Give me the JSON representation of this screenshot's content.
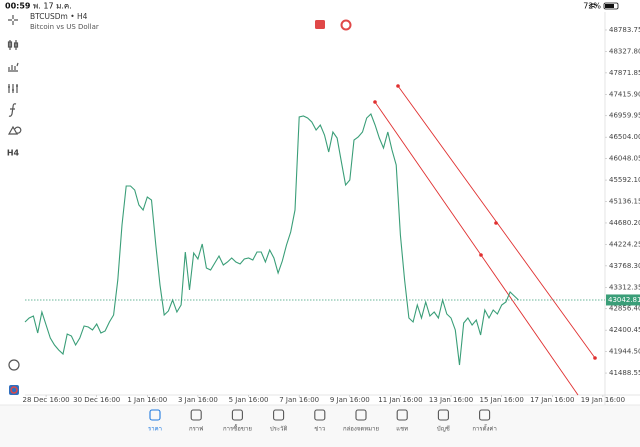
{
  "status_bar": {
    "time": "00:59",
    "date": "พ. 17 ม.ค.",
    "battery": "72%"
  },
  "symbol": {
    "name": "BTCUSDm • H4",
    "description": "Bitcoin vs US Dollar"
  },
  "timeframe_button": "H4",
  "chart_data": {
    "type": "line",
    "color": "#3a9e78",
    "x": [
      -20,
      -16,
      -12,
      -8,
      -4,
      0,
      4,
      8,
      12,
      16,
      20,
      24,
      28,
      32,
      36,
      40,
      44,
      48,
      52,
      56,
      60,
      64,
      68,
      72,
      76,
      80,
      84,
      88,
      92,
      96,
      100,
      104,
      108,
      112,
      116,
      120,
      124,
      128,
      132,
      136,
      140,
      144,
      148,
      152,
      156,
      160,
      164,
      168,
      172,
      176,
      180,
      184,
      188,
      192,
      196,
      200,
      204,
      208,
      212,
      216,
      220,
      224,
      228,
      232,
      236,
      240,
      244,
      248,
      252,
      256,
      260,
      264,
      268,
      272,
      276,
      280,
      284,
      288,
      292,
      296,
      300,
      304,
      308,
      312,
      316,
      320,
      324,
      328,
      332,
      336,
      340,
      344,
      348,
      352,
      356,
      360,
      364,
      368,
      372,
      376,
      380,
      384,
      388,
      392,
      396,
      400,
      404,
      408,
      412,
      416,
      420,
      424,
      428,
      432,
      436,
      440,
      444,
      448
    ],
    "values": [
      42574,
      42659,
      42702,
      42340,
      42787,
      42510,
      42234,
      42085,
      41979,
      41894,
      42319,
      42276,
      42085,
      42234,
      42489,
      42468,
      42404,
      42532,
      42340,
      42383,
      42574,
      42723,
      43467,
      44637,
      45466,
      45466,
      45381,
      45062,
      44956,
      45232,
      45169,
      44212,
      43361,
      42723,
      42808,
      43042,
      42787,
      42936,
      44063,
      43255,
      44041,
      43914,
      44233,
      43722,
      43680,
      43829,
      43978,
      43786,
      43850,
      43935,
      43850,
      43807,
      43914,
      43935,
      43893,
      44063,
      44063,
      43850,
      44105,
      43935,
      43616,
      43871,
      44212,
      44488,
      44956,
      46934,
      46955,
      46912,
      46827,
      46657,
      46763,
      46551,
      46189,
      46615,
      46487,
      45977,
      45487,
      45594,
      46444,
      46508,
      46615,
      46912,
      46997,
      46763,
      46487,
      46274,
      46615,
      46232,
      45913,
      44424,
      43467,
      42659,
      42574,
      42936,
      42659,
      42999,
      42702,
      42787,
      42659,
      43042,
      42744,
      42659,
      42404,
      41660,
      42553,
      42659,
      42510,
      42617,
      42298,
      42829,
      42659,
      42829,
      42744,
      42936,
      42999,
      43212,
      43127,
      43042
    ],
    "xlim": [
      -20,
      530
    ],
    "xticks": [
      {
        "value": 0,
        "label": "28 Dec 16:00"
      },
      {
        "value": 48,
        "label": "30 Dec 16:00"
      },
      {
        "value": 96,
        "label": "1 Jan 16:00"
      },
      {
        "value": 144,
        "label": "3 Jan 16:00"
      },
      {
        "value": 192,
        "label": "5 Jan 16:00"
      },
      {
        "value": 240,
        "label": "7 Jan 16:00"
      },
      {
        "value": 288,
        "label": "9 Jan 16:00"
      },
      {
        "value": 336,
        "label": "11 Jan 16:00"
      },
      {
        "value": 384,
        "label": "13 Jan 16:00"
      },
      {
        "value": 432,
        "label": "15 Jan 16:00"
      },
      {
        "value": 480,
        "label": "17 Jan 16:00"
      },
      {
        "value": 528,
        "label": "19 Jan 16:00"
      }
    ],
    "ylim": [
      41022,
      49166
    ],
    "yticks": [
      {
        "value": 48783.75,
        "label": "48783.75"
      },
      {
        "value": 48327.8,
        "label": "48327.80"
      },
      {
        "value": 47871.85,
        "label": "47871.85"
      },
      {
        "value": 47415.9,
        "label": "47415.90"
      },
      {
        "value": 46959.95,
        "label": "46959.95"
      },
      {
        "value": 46504,
        "label": "46504.00"
      },
      {
        "value": 46048.05,
        "label": "46048.05"
      },
      {
        "value": 45592.1,
        "label": "45592.10"
      },
      {
        "value": 45136.15,
        "label": "45136.15"
      },
      {
        "value": 44680.2,
        "label": "44680.20"
      },
      {
        "value": 44224.25,
        "label": "44224.25"
      },
      {
        "value": 43768.3,
        "label": "43768.30"
      },
      {
        "value": 43312.35,
        "label": "43312.35"
      },
      {
        "value": 42856.4,
        "label": "42856.40"
      },
      {
        "value": 42400.45,
        "label": "42400.45"
      },
      {
        "value": 41944.5,
        "label": "41944.50"
      },
      {
        "value": 41488.55,
        "label": "41488.55"
      }
    ],
    "last_price": {
      "value": 43042.81,
      "label": "43042.81"
    }
  },
  "nav": [
    "ราคา",
    "กราฟ",
    "การซื้อขาย",
    "ประวัติ",
    "ข่าว",
    "กล่องจดหมาย",
    "แชท",
    "บัญชี",
    "การตั้งค่า"
  ]
}
